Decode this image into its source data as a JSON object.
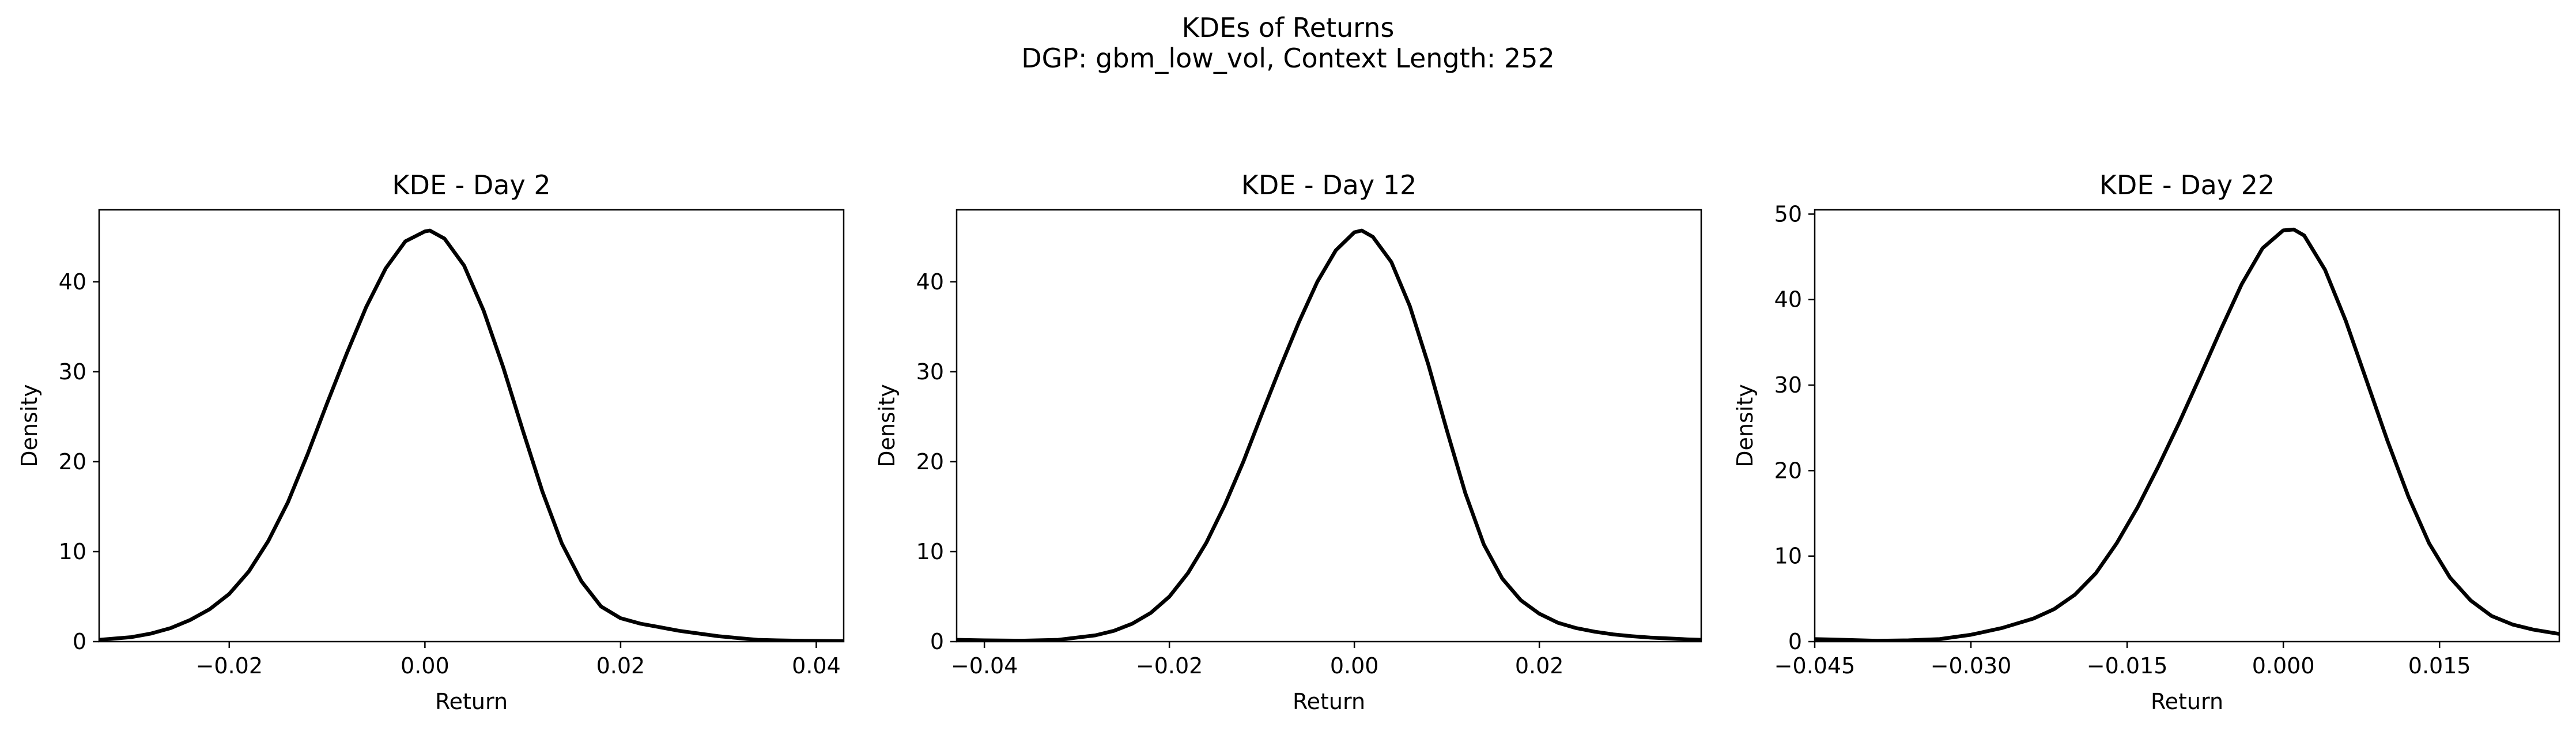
{
  "figure": {
    "title_line1": "KDEs of Returns",
    "title_line2": "DGP: gbm_low_vol, Context Length: 252"
  },
  "chart_data": [
    {
      "type": "line",
      "title": "KDE - Day 2",
      "xlabel": "Return",
      "ylabel": "Density",
      "xlim": [
        -0.0333,
        0.0428
      ],
      "ylim": [
        0,
        48
      ],
      "xticks": [
        -0.02,
        0.0,
        0.02,
        0.04
      ],
      "xtick_labels": [
        "−0.02",
        "0.00",
        "0.02",
        "0.04"
      ],
      "yticks": [
        0,
        10,
        20,
        30,
        40
      ],
      "ytick_labels": [
        "0",
        "10",
        "20",
        "30",
        "40"
      ],
      "grid": false,
      "line_color": "#000000",
      "series": [
        {
          "x": [
            -0.0333,
            -0.03,
            -0.028,
            -0.026,
            -0.024,
            -0.022,
            -0.02,
            -0.018,
            -0.016,
            -0.014,
            -0.012,
            -0.01,
            -0.008,
            -0.006,
            -0.004,
            -0.002,
            0.0,
            0.0005,
            0.002,
            0.004,
            0.006,
            0.008,
            0.01,
            0.012,
            0.014,
            0.016,
            0.018,
            0.02,
            0.022,
            0.024,
            0.026,
            0.028,
            0.03,
            0.032,
            0.034,
            0.036,
            0.038,
            0.04,
            0.0428
          ],
          "y": [
            0.2,
            0.5,
            0.9,
            1.5,
            2.4,
            3.6,
            5.3,
            7.8,
            11.2,
            15.5,
            20.8,
            26.5,
            32.0,
            37.2,
            41.5,
            44.5,
            45.6,
            45.7,
            44.8,
            41.8,
            36.8,
            30.5,
            23.5,
            16.7,
            10.9,
            6.7,
            3.9,
            2.6,
            2.0,
            1.6,
            1.2,
            0.9,
            0.6,
            0.4,
            0.2,
            0.15,
            0.1,
            0.08,
            0.05
          ]
        }
      ]
    },
    {
      "type": "line",
      "title": "KDE - Day 12",
      "xlabel": "Return",
      "ylabel": "Density",
      "xlim": [
        -0.043,
        0.0375
      ],
      "ylim": [
        0,
        48
      ],
      "xticks": [
        -0.04,
        -0.02,
        0.0,
        0.02
      ],
      "xtick_labels": [
        "−0.04",
        "−0.02",
        "0.00",
        "0.02"
      ],
      "yticks": [
        0,
        10,
        20,
        30,
        40
      ],
      "ytick_labels": [
        "0",
        "10",
        "20",
        "30",
        "40"
      ],
      "grid": false,
      "line_color": "#000000",
      "series": [
        {
          "x": [
            -0.043,
            -0.04,
            -0.036,
            -0.032,
            -0.028,
            -0.026,
            -0.024,
            -0.022,
            -0.02,
            -0.018,
            -0.016,
            -0.014,
            -0.012,
            -0.01,
            -0.008,
            -0.006,
            -0.004,
            -0.002,
            0.0,
            0.0008,
            0.002,
            0.004,
            0.006,
            0.008,
            0.01,
            0.012,
            0.014,
            0.016,
            0.018,
            0.02,
            0.022,
            0.024,
            0.026,
            0.028,
            0.03,
            0.032,
            0.034,
            0.036,
            0.0375
          ],
          "y": [
            0.2,
            0.15,
            0.1,
            0.2,
            0.7,
            1.2,
            2.0,
            3.2,
            5.0,
            7.6,
            11.0,
            15.2,
            20.0,
            25.3,
            30.5,
            35.5,
            40.0,
            43.5,
            45.5,
            45.7,
            45.0,
            42.2,
            37.3,
            30.8,
            23.5,
            16.5,
            10.8,
            7.0,
            4.6,
            3.1,
            2.1,
            1.5,
            1.1,
            0.8,
            0.6,
            0.45,
            0.35,
            0.25,
            0.2
          ]
        }
      ]
    },
    {
      "type": "line",
      "title": "KDE - Day 22",
      "xlabel": "Return",
      "ylabel": "Density",
      "xlim": [
        -0.045,
        0.0265
      ],
      "ylim": [
        0,
        50.5
      ],
      "xticks": [
        -0.045,
        -0.03,
        -0.015,
        0.0,
        0.015
      ],
      "xtick_labels": [
        "−0.045",
        "−0.030",
        "−0.015",
        "0.000",
        "0.015"
      ],
      "yticks": [
        0,
        10,
        20,
        30,
        40,
        50
      ],
      "ytick_labels": [
        "0",
        "10",
        "20",
        "30",
        "40",
        "50"
      ],
      "grid": false,
      "line_color": "#000000",
      "series": [
        {
          "x": [
            -0.045,
            -0.042,
            -0.039,
            -0.036,
            -0.033,
            -0.03,
            -0.027,
            -0.024,
            -0.022,
            -0.02,
            -0.018,
            -0.016,
            -0.014,
            -0.012,
            -0.01,
            -0.008,
            -0.006,
            -0.004,
            -0.002,
            0.0,
            0.001,
            0.002,
            0.004,
            0.006,
            0.008,
            0.01,
            0.012,
            0.014,
            0.016,
            0.018,
            0.02,
            0.022,
            0.024,
            0.0265
          ],
          "y": [
            0.3,
            0.2,
            0.1,
            0.15,
            0.3,
            0.8,
            1.6,
            2.7,
            3.8,
            5.5,
            8.0,
            11.5,
            15.7,
            20.5,
            25.6,
            31.0,
            36.5,
            41.8,
            46.0,
            48.1,
            48.2,
            47.5,
            43.5,
            37.5,
            30.5,
            23.5,
            17.0,
            11.5,
            7.5,
            4.8,
            3.0,
            2.0,
            1.4,
            0.9
          ]
        }
      ]
    }
  ]
}
